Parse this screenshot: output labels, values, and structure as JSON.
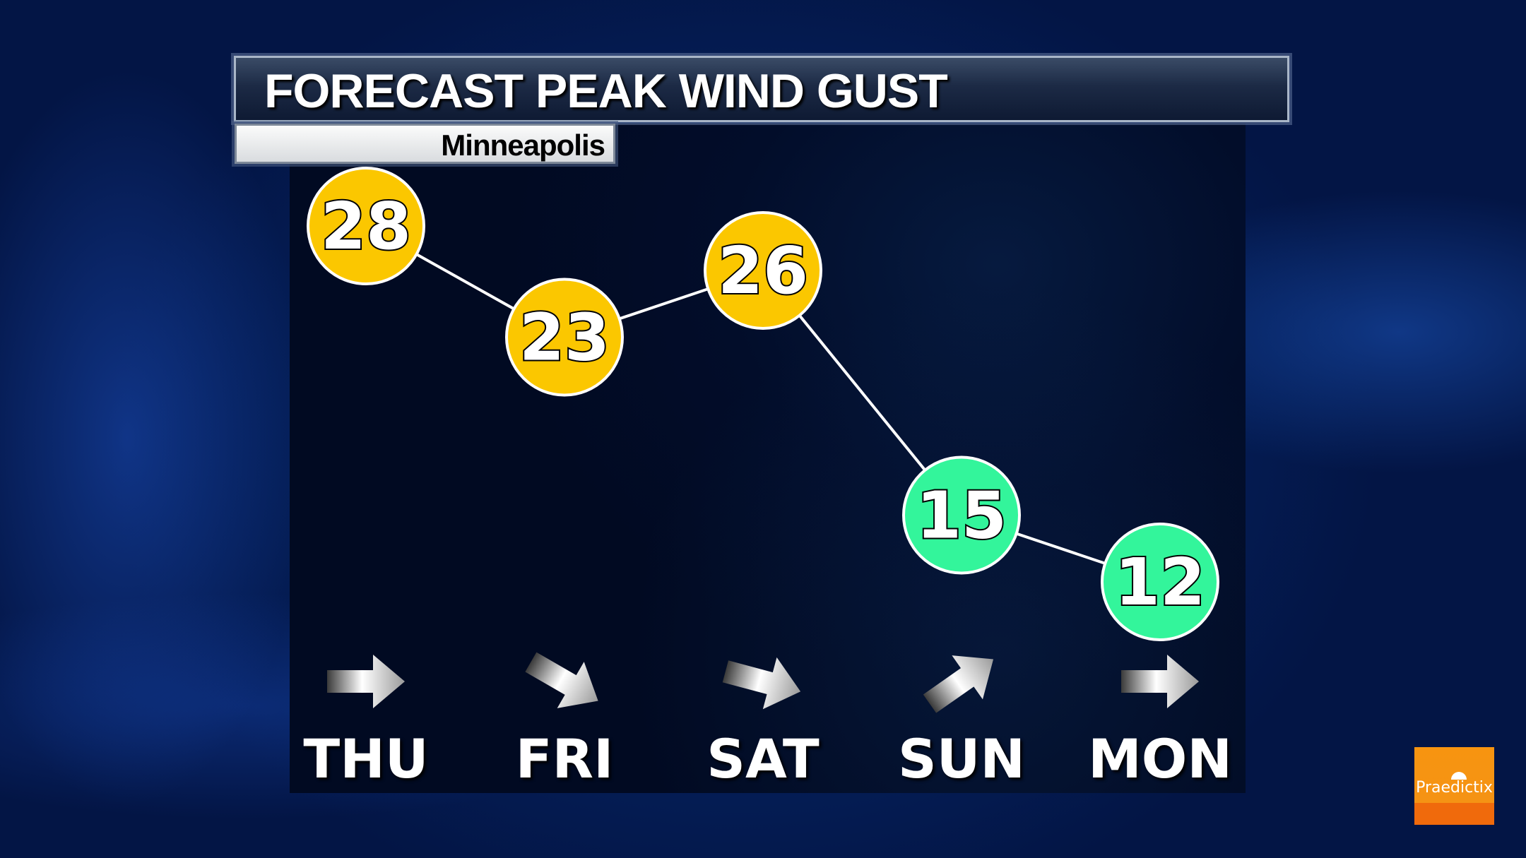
{
  "header": {
    "title": "FORECAST PEAK WIND GUST",
    "location": "Minneapolis"
  },
  "colors": {
    "high": "#fbc700",
    "low": "#33f59b",
    "line": "#ffffff"
  },
  "chart_data": {
    "type": "line",
    "categories": [
      "THU",
      "FRI",
      "SAT",
      "SUN",
      "MON"
    ],
    "values": [
      28,
      23,
      26,
      15,
      12
    ],
    "point_colors": [
      "#fbc700",
      "#fbc700",
      "#fbc700",
      "#33f59b",
      "#33f59b"
    ],
    "wind_direction_arrows_deg": [
      0,
      30,
      15,
      -35,
      0
    ],
    "xlabel": "",
    "ylabel": ""
  },
  "logo": {
    "text": "Praedictix"
  }
}
